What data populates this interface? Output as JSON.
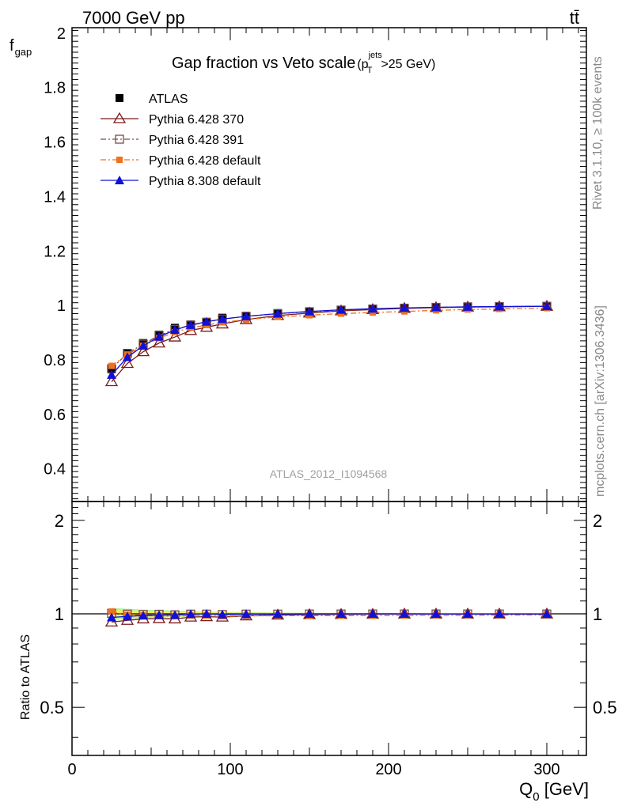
{
  "header": {
    "left": "7000 GeV pp",
    "right": "tt̄"
  },
  "side": {
    "top": "Rivet 3.1.10, ≥ 100k events",
    "bottom": "mcplots.cern.ch [arXiv:1306.3436]"
  },
  "watermark": "ATLAS_2012_I1094568",
  "chart_data": [
    {
      "type": "scatter",
      "title": "Gap fraction vs Veto scale",
      "title_cut": {
        "p": "p",
        "sup": "jets",
        "sub": "T",
        "tail": ">25 GeV)"
      },
      "ylabel": "f",
      "ylabel_sub": "gap",
      "xlim": [
        0,
        325
      ],
      "ylim": [
        0.28,
        2.02
      ],
      "y_ticks": [
        0.4,
        0.6,
        0.8,
        1,
        1.2,
        1.4,
        1.6,
        1.8,
        2
      ],
      "y_tick_labels": [
        "0.4",
        "0.6",
        "0.8",
        "1",
        "1.2",
        "1.4",
        "1.6",
        "1.8",
        "2"
      ],
      "legend_position": "top-left",
      "x": [
        25,
        35,
        45,
        55,
        65,
        75,
        85,
        95,
        110,
        130,
        150,
        170,
        190,
        210,
        230,
        250,
        270,
        300
      ],
      "series": [
        {
          "name": "ATLAS",
          "color": "#000000",
          "marker": "square-filled",
          "line": "none",
          "values": [
            0.765,
            0.826,
            0.862,
            0.893,
            0.918,
            0.93,
            0.94,
            0.955,
            0.962,
            0.972,
            0.978,
            0.984,
            0.988,
            0.991,
            0.994,
            0.996,
            0.997,
            0.998
          ]
        },
        {
          "name": "Pythia 6.428 370",
          "color": "#7a1a1a",
          "marker": "triangle-open",
          "line": "solid",
          "values": [
            0.72,
            0.787,
            0.83,
            0.862,
            0.884,
            0.908,
            0.92,
            0.932,
            0.948,
            0.963,
            0.972,
            0.98,
            0.985,
            0.989,
            0.992,
            0.994,
            0.995,
            0.997
          ]
        },
        {
          "name": "Pythia 6.428 391",
          "color": "#7a4a4a",
          "marker": "square-open",
          "line": "dashdot",
          "values": [
            0.768,
            0.824,
            0.858,
            0.89,
            0.912,
            0.928,
            0.938,
            0.95,
            0.96,
            0.97,
            0.977,
            0.983,
            0.987,
            0.99,
            0.993,
            0.995,
            0.996,
            0.997
          ]
        },
        {
          "name": "Pythia 6.428 default",
          "color": "#f07020",
          "marker": "square-filled-small",
          "line": "dashdot",
          "values": [
            0.778,
            0.82,
            0.852,
            0.88,
            0.902,
            0.918,
            0.928,
            0.938,
            0.948,
            0.958,
            0.964,
            0.97,
            0.974,
            0.978,
            0.982,
            0.985,
            0.987,
            0.99
          ]
        },
        {
          "name": "Pythia 8.308 default",
          "color": "#1010d8",
          "marker": "triangle-filled",
          "line": "solid",
          "values": [
            0.745,
            0.81,
            0.852,
            0.885,
            0.91,
            0.928,
            0.94,
            0.95,
            0.96,
            0.97,
            0.978,
            0.984,
            0.988,
            0.991,
            0.993,
            0.995,
            0.996,
            0.997
          ]
        }
      ]
    },
    {
      "type": "scatter",
      "title": "",
      "xlabel": "Q",
      "xlabel_sub": "0",
      "xlabel_unit": " [GeV]",
      "ylabel": "Ratio to ATLAS",
      "xlim": [
        0,
        325
      ],
      "ylim": [
        0.35,
        2.3
      ],
      "y_scale": "log",
      "x_ticks": [
        0,
        100,
        200,
        300
      ],
      "x_tick_labels": [
        "0",
        "100",
        "200",
        "300"
      ],
      "y_ticks": [
        0.5,
        1,
        2
      ],
      "y_tick_labels": [
        "0.5",
        "1",
        "2"
      ],
      "reference_line": 1,
      "x": [
        25,
        35,
        45,
        55,
        65,
        75,
        85,
        95,
        110,
        130,
        150,
        170,
        190,
        210,
        230,
        250,
        270,
        300
      ],
      "band_inner": {
        "color": "#f0f060",
        "lower": [
          0.97,
          0.975,
          0.98,
          0.982,
          0.985,
          0.987,
          0.988,
          0.99,
          0.991,
          0.993,
          0.994,
          0.995,
          0.996,
          0.997,
          0.997,
          0.998,
          0.998,
          0.998
        ],
        "upper": [
          1.03,
          1.025,
          1.02,
          1.018,
          1.015,
          1.013,
          1.012,
          1.01,
          1.009,
          1.007,
          1.006,
          1.005,
          1.004,
          1.003,
          1.003,
          1.002,
          1.002,
          1.002
        ]
      },
      "band_outer": {
        "color": "#b8f0a0",
        "lower": [
          0.955,
          0.962,
          0.968,
          0.972,
          0.976,
          0.98,
          0.982,
          0.985,
          0.987,
          0.99,
          0.992,
          0.993,
          0.994,
          0.995,
          0.996,
          0.997,
          0.997,
          0.997
        ],
        "upper": [
          1.045,
          1.038,
          1.032,
          1.028,
          1.024,
          1.02,
          1.018,
          1.015,
          1.013,
          1.01,
          1.008,
          1.007,
          1.006,
          1.005,
          1.004,
          1.003,
          1.003,
          1.003
        ]
      },
      "series": [
        {
          "name": "Pythia 6.428 370",
          "color": "#7a1a1a",
          "marker": "triangle-open",
          "line": "solid",
          "values": [
            0.941,
            0.953,
            0.963,
            0.965,
            0.963,
            0.976,
            0.979,
            0.976,
            0.985,
            0.991,
            0.994,
            0.996,
            0.997,
            0.998,
            0.998,
            0.998,
            0.998,
            0.999
          ]
        },
        {
          "name": "Pythia 6.428 391",
          "color": "#7a4a4a",
          "marker": "square-open",
          "line": "dashdot",
          "values": [
            1.004,
            0.998,
            0.995,
            0.997,
            0.993,
            0.998,
            0.998,
            0.995,
            0.998,
            0.998,
            0.999,
            0.999,
            0.999,
            0.999,
            0.999,
            0.999,
            0.999,
            0.999
          ]
        },
        {
          "name": "Pythia 6.428 default",
          "color": "#f07020",
          "marker": "square-filled-small",
          "line": "dashdot",
          "values": [
            1.017,
            0.993,
            0.988,
            0.985,
            0.983,
            0.987,
            0.987,
            0.982,
            0.985,
            0.986,
            0.986,
            0.986,
            0.986,
            0.987,
            0.988,
            0.989,
            0.99,
            0.992
          ]
        },
        {
          "name": "Pythia 8.308 default",
          "color": "#1010d8",
          "marker": "triangle-filled",
          "line": "solid",
          "values": [
            0.974,
            0.981,
            0.988,
            0.991,
            0.991,
            0.998,
            1.0,
            0.995,
            0.998,
            0.998,
            1.0,
            1.0,
            1.0,
            1.0,
            0.999,
            0.999,
            0.999,
            0.999
          ]
        }
      ]
    }
  ]
}
